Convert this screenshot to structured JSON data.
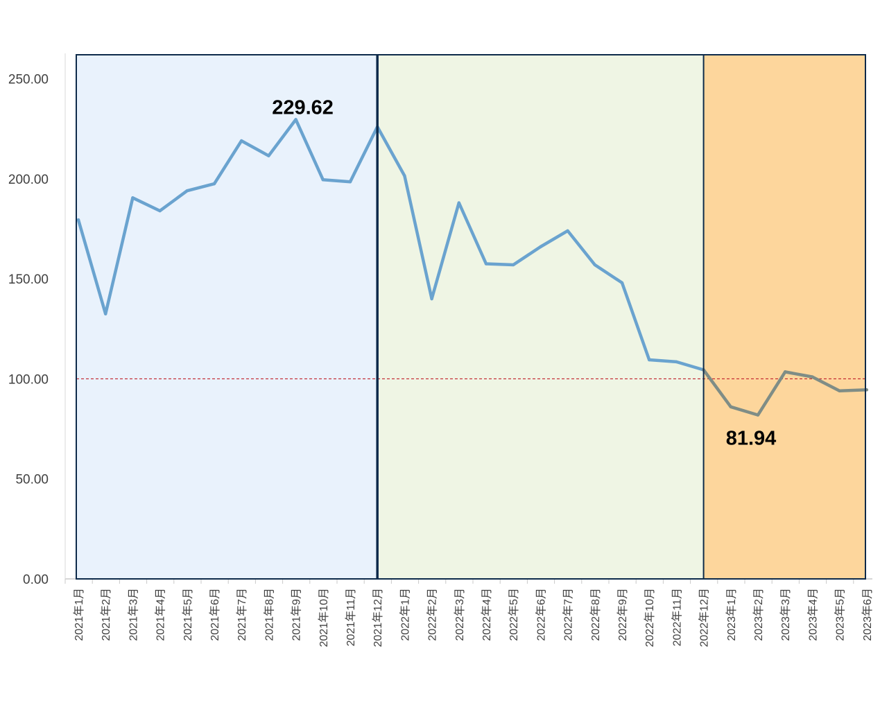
{
  "chart_data": {
    "type": "line",
    "categories": [
      "2021年1月",
      "2021年2月",
      "2021年3月",
      "2021年4月",
      "2021年5月",
      "2021年6月",
      "2021年7月",
      "2021年8月",
      "2021年9月",
      "2021年10月",
      "2021年11月",
      "2021年12月",
      "2022年1月",
      "2022年2月",
      "2022年3月",
      "2022年4月",
      "2022年5月",
      "2022年6月",
      "2022年7月",
      "2022年8月",
      "2022年9月",
      "2022年10月",
      "2022年11月",
      "2022年12月",
      "2023年1月",
      "2023年2月",
      "2023年3月",
      "2023年4月",
      "2023年5月",
      "2023年6月"
    ],
    "series": [
      {
        "values": [
          179.5,
          132.5,
          190.5,
          184.0,
          194.0,
          197.5,
          219.0,
          211.5,
          229.62,
          199.5,
          198.5,
          226.0,
          201.5,
          140.0,
          188.0,
          157.5,
          157.0,
          166.0,
          174.0,
          157.0,
          148.0,
          109.5,
          108.5,
          104.5,
          86.0,
          81.94,
          103.5,
          101.0,
          94.0,
          94.5
        ],
        "color_before": "#6aa3cf",
        "color_after": "#7f8d86"
      }
    ],
    "ylim": [
      0,
      262
    ],
    "yticks": [
      "0.00",
      "50.00",
      "100.00",
      "150.00",
      "200.00",
      "250.00"
    ],
    "ytick_values": [
      0,
      50,
      100,
      150,
      200,
      250
    ],
    "reference_line": {
      "value": 100,
      "color": "#c0202a",
      "style": "dashed"
    },
    "regions": [
      {
        "from": "2021年1月",
        "to": "2021年12月",
        "color": "#e9f2fc"
      },
      {
        "from": "2021年12月",
        "to": "2022年12月",
        "color": "#eff5e4"
      },
      {
        "from": "2022年12月",
        "to": "2023年6月",
        "color": "#fdd69c"
      }
    ],
    "color_change_index": 23,
    "annotations": [
      {
        "text": "229.62",
        "category": "2021年9月"
      },
      {
        "text": "81.94",
        "category": "2023年2月"
      }
    ],
    "border_color": "#0d2a4a",
    "grid": false,
    "title": "",
    "xlabel": "",
    "ylabel": ""
  }
}
